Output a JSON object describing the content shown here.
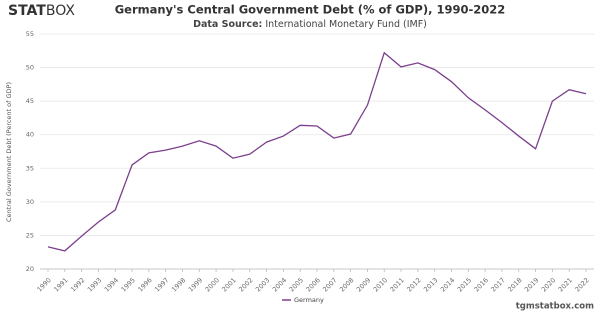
{
  "header": {
    "logo_bold": "STAT",
    "logo_light": "BOX"
  },
  "footer": "tgmstatbox.com",
  "chart_data": {
    "type": "line",
    "title": "Germany's Central Government Debt (% of GDP), 1990-2022",
    "subtitle_label": "Data Source:",
    "subtitle": "International Monetary Fund (IMF)",
    "y_label": "Central Government Debt (Percent of GDP)",
    "x": [
      1990,
      1991,
      1992,
      1993,
      1994,
      1995,
      1996,
      1997,
      1998,
      1999,
      2000,
      2001,
      2002,
      2003,
      2004,
      2005,
      2006,
      2007,
      2008,
      2009,
      2010,
      2011,
      2012,
      2013,
      2014,
      2015,
      2016,
      2017,
      2018,
      2019,
      2020,
      2021,
      2022
    ],
    "series": [
      {
        "name": "Germany",
        "color": "#7b3f8c",
        "values": [
          23.3,
          22.7,
          24.9,
          27.0,
          28.8,
          35.5,
          37.3,
          37.7,
          38.3,
          39.1,
          38.3,
          36.5,
          37.1,
          38.9,
          39.8,
          41.4,
          41.3,
          39.5,
          40.1,
          44.4,
          52.2,
          50.1,
          50.7,
          49.7,
          47.9,
          45.5,
          43.7,
          41.8,
          39.8,
          37.9,
          45.0,
          46.7,
          46.1
        ]
      }
    ],
    "xlim": [
      1990,
      2022
    ],
    "xticks": [
      1990,
      1991,
      1992,
      1993,
      1994,
      1995,
      1996,
      1997,
      1998,
      1999,
      2000,
      2001,
      2002,
      2003,
      2004,
      2005,
      2006,
      2007,
      2008,
      2009,
      2010,
      2011,
      2012,
      2013,
      2014,
      2015,
      2016,
      2017,
      2018,
      2019,
      2020,
      2021,
      2022
    ],
    "ylim": [
      20,
      55
    ],
    "yticks": [
      20,
      25,
      30,
      35,
      40,
      45,
      50,
      55
    ],
    "grid": true,
    "legend": "bottom"
  }
}
